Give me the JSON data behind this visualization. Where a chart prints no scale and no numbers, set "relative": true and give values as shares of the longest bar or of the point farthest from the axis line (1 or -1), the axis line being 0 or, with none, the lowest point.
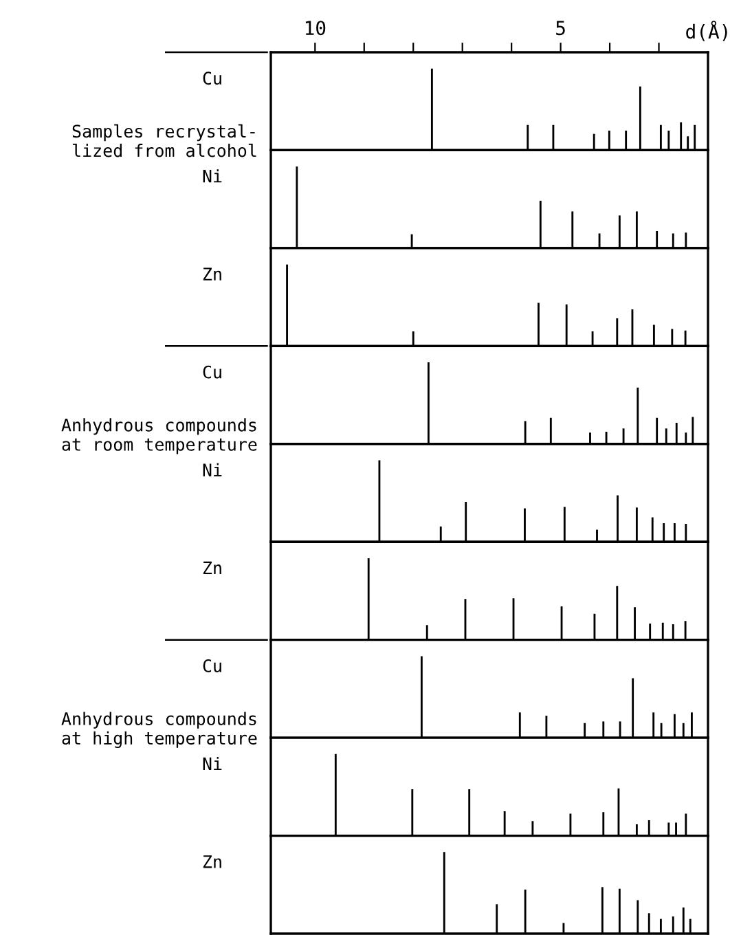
{
  "chart_data": [
    {
      "type": "bar",
      "title": "Cu",
      "xlabel": "d(Å)",
      "annotations": [
        "Samples recrystal-\nlized from alcohol"
      ],
      "relative": true,
      "color": "#000000",
      "xlim": [
        10.9,
        2.0
      ],
      "xticks": [
        10,
        {
          "value": 9,
          "label": null
        },
        {
          "value": 8,
          "label": null
        },
        {
          "value": 7,
          "label": null
        },
        {
          "value": 6,
          "label": null
        },
        5,
        {
          "value": 4,
          "label": null
        },
        {
          "value": 3,
          "label": null
        }
      ],
      "tick_labels": "x",
      "x": [
        7.62,
        5.67,
        5.15,
        4.32,
        4.01,
        3.67,
        3.38,
        2.96,
        2.8,
        2.55,
        2.41,
        2.27
      ],
      "values": [
        1,
        0.31,
        0.31,
        0.2,
        0.24,
        0.24,
        0.78,
        0.31,
        0.24,
        0.34,
        0.17,
        0.31
      ]
    },
    {
      "type": "bar",
      "title": "Ni",
      "relative": true,
      "color": "#000000",
      "xlim": [
        10.9,
        2.0
      ],
      "tick_labels": false,
      "x": [
        10.37,
        8.03,
        5.41,
        4.76,
        4.21,
        3.8,
        3.45,
        3.04,
        2.71,
        2.45
      ],
      "values": [
        1,
        0.17,
        0.58,
        0.45,
        0.18,
        0.4,
        0.45,
        0.21,
        0.18,
        0.19
      ]
    },
    {
      "type": "bar",
      "title": "Zn",
      "relative": true,
      "color": "#000000",
      "xlim": [
        10.9,
        2.0
      ],
      "tick_labels": false,
      "x": [
        10.57,
        8.0,
        5.45,
        4.88,
        4.35,
        3.85,
        3.54,
        3.1,
        2.73,
        2.46
      ],
      "values": [
        1,
        0.18,
        0.53,
        0.51,
        0.18,
        0.34,
        0.45,
        0.26,
        0.21,
        0.19
      ]
    },
    {
      "type": "bar",
      "title": "Cu",
      "annotations": [
        "Anhydrous compounds\nat room temperature"
      ],
      "relative": true,
      "color": "#000000",
      "xlim": [
        10.9,
        2.0
      ],
      "tick_labels": false,
      "x": [
        7.69,
        5.72,
        5.2,
        4.4,
        4.07,
        3.72,
        3.43,
        3.04,
        2.85,
        2.64,
        2.45,
        2.31
      ],
      "values": [
        1,
        0.28,
        0.32,
        0.14,
        0.15,
        0.19,
        0.69,
        0.32,
        0.19,
        0.26,
        0.14,
        0.33
      ]
    },
    {
      "type": "bar",
      "title": "Ni",
      "relative": true,
      "color": "#000000",
      "xlim": [
        10.9,
        2.0
      ],
      "tick_labels": false,
      "x": [
        8.69,
        7.44,
        6.93,
        5.73,
        4.92,
        4.26,
        3.84,
        3.45,
        3.13,
        2.9,
        2.68,
        2.45
      ],
      "values": [
        1,
        0.19,
        0.49,
        0.41,
        0.43,
        0.15,
        0.57,
        0.42,
        0.3,
        0.23,
        0.23,
        0.22
      ]
    },
    {
      "type": "bar",
      "title": "Zn",
      "relative": true,
      "color": "#000000",
      "xlim": [
        10.9,
        2.0
      ],
      "tick_labels": false,
      "x": [
        8.91,
        7.72,
        6.94,
        5.96,
        4.98,
        4.31,
        3.85,
        3.49,
        3.18,
        2.92,
        2.71,
        2.46
      ],
      "values": [
        1,
        0.18,
        0.5,
        0.51,
        0.41,
        0.32,
        0.66,
        0.4,
        0.2,
        0.21,
        0.19,
        0.23
      ]
    },
    {
      "type": "bar",
      "title": "Cu",
      "annotations": [
        "Anhydrous compounds\nat high temperature"
      ],
      "relative": true,
      "color": "#000000",
      "xlim": [
        10.9,
        2.0
      ],
      "tick_labels": false,
      "x": [
        7.83,
        5.83,
        5.29,
        4.51,
        4.13,
        3.79,
        3.53,
        3.11,
        2.95,
        2.68,
        2.5,
        2.33
      ],
      "values": [
        1,
        0.31,
        0.27,
        0.18,
        0.2,
        0.2,
        0.73,
        0.31,
        0.18,
        0.29,
        0.18,
        0.31
      ]
    },
    {
      "type": "bar",
      "title": "Ni",
      "relative": true,
      "color": "#000000",
      "xlim": [
        10.9,
        2.0
      ],
      "tick_labels": false,
      "x": [
        9.58,
        8.02,
        6.86,
        6.14,
        5.57,
        4.8,
        4.13,
        3.82,
        3.45,
        3.2,
        2.8,
        2.65,
        2.45
      ],
      "values": [
        1,
        0.57,
        0.57,
        0.3,
        0.18,
        0.27,
        0.29,
        0.58,
        0.14,
        0.19,
        0.16,
        0.16,
        0.27
      ]
    },
    {
      "type": "bar",
      "title": "Zn",
      "relative": true,
      "color": "#000000",
      "xlim": [
        10.9,
        2.0
      ],
      "tick_labels": false,
      "x": [
        7.37,
        6.3,
        5.72,
        4.94,
        4.15,
        3.8,
        3.43,
        3.2,
        2.96,
        2.71,
        2.5,
        2.36
      ],
      "values": [
        1,
        0.36,
        0.54,
        0.13,
        0.57,
        0.55,
        0.41,
        0.25,
        0.18,
        0.21,
        0.32,
        0.18
      ]
    }
  ]
}
